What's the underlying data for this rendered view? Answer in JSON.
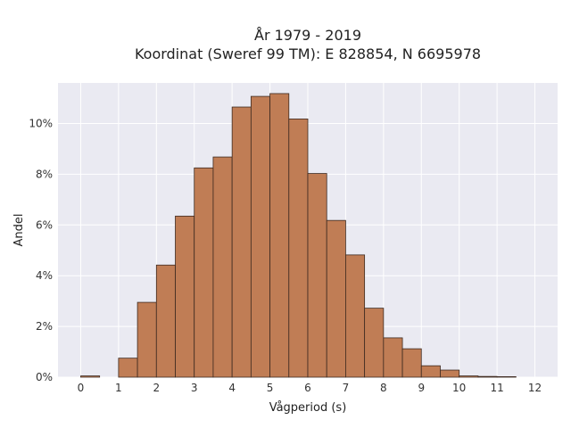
{
  "chart_data": {
    "type": "bar",
    "title": "År 1979 - 2019",
    "subtitle": "Koordinat (Sweref 99 TM): E 828854, N 6695978",
    "xlabel": "Vågperiod (s)",
    "ylabel": "Andel",
    "xlim": [
      -0.6,
      12.6
    ],
    "ylim": [
      0,
      11.6
    ],
    "x_ticks": [
      0,
      1,
      2,
      3,
      4,
      5,
      6,
      7,
      8,
      9,
      10,
      11,
      12
    ],
    "y_ticks": [
      0,
      2,
      4,
      6,
      8,
      10
    ],
    "y_tick_suffix": "%",
    "bin_width": 0.5,
    "bins": [
      {
        "x0": 0.0,
        "value": 0.05
      },
      {
        "x0": 1.0,
        "value": 0.75
      },
      {
        "x0": 1.5,
        "value": 2.95
      },
      {
        "x0": 2.0,
        "value": 4.42
      },
      {
        "x0": 2.5,
        "value": 6.35
      },
      {
        "x0": 3.0,
        "value": 8.25
      },
      {
        "x0": 3.5,
        "value": 8.68
      },
      {
        "x0": 4.0,
        "value": 10.65
      },
      {
        "x0": 4.5,
        "value": 11.07
      },
      {
        "x0": 5.0,
        "value": 11.18
      },
      {
        "x0": 5.5,
        "value": 10.18
      },
      {
        "x0": 6.0,
        "value": 8.03
      },
      {
        "x0": 6.5,
        "value": 6.18
      },
      {
        "x0": 7.0,
        "value": 4.82
      },
      {
        "x0": 7.5,
        "value": 2.72
      },
      {
        "x0": 8.0,
        "value": 1.55
      },
      {
        "x0": 8.5,
        "value": 1.12
      },
      {
        "x0": 9.0,
        "value": 0.45
      },
      {
        "x0": 9.5,
        "value": 0.28
      },
      {
        "x0": 10.0,
        "value": 0.05
      },
      {
        "x0": 10.5,
        "value": 0.03
      },
      {
        "x0": 11.0,
        "value": 0.02
      }
    ],
    "grid": true,
    "colors": {
      "bar_fill": "#C07D55",
      "bar_edge": "#3d2a20",
      "plot_bg": "#EAEAF2",
      "grid": "#ffffff"
    }
  }
}
